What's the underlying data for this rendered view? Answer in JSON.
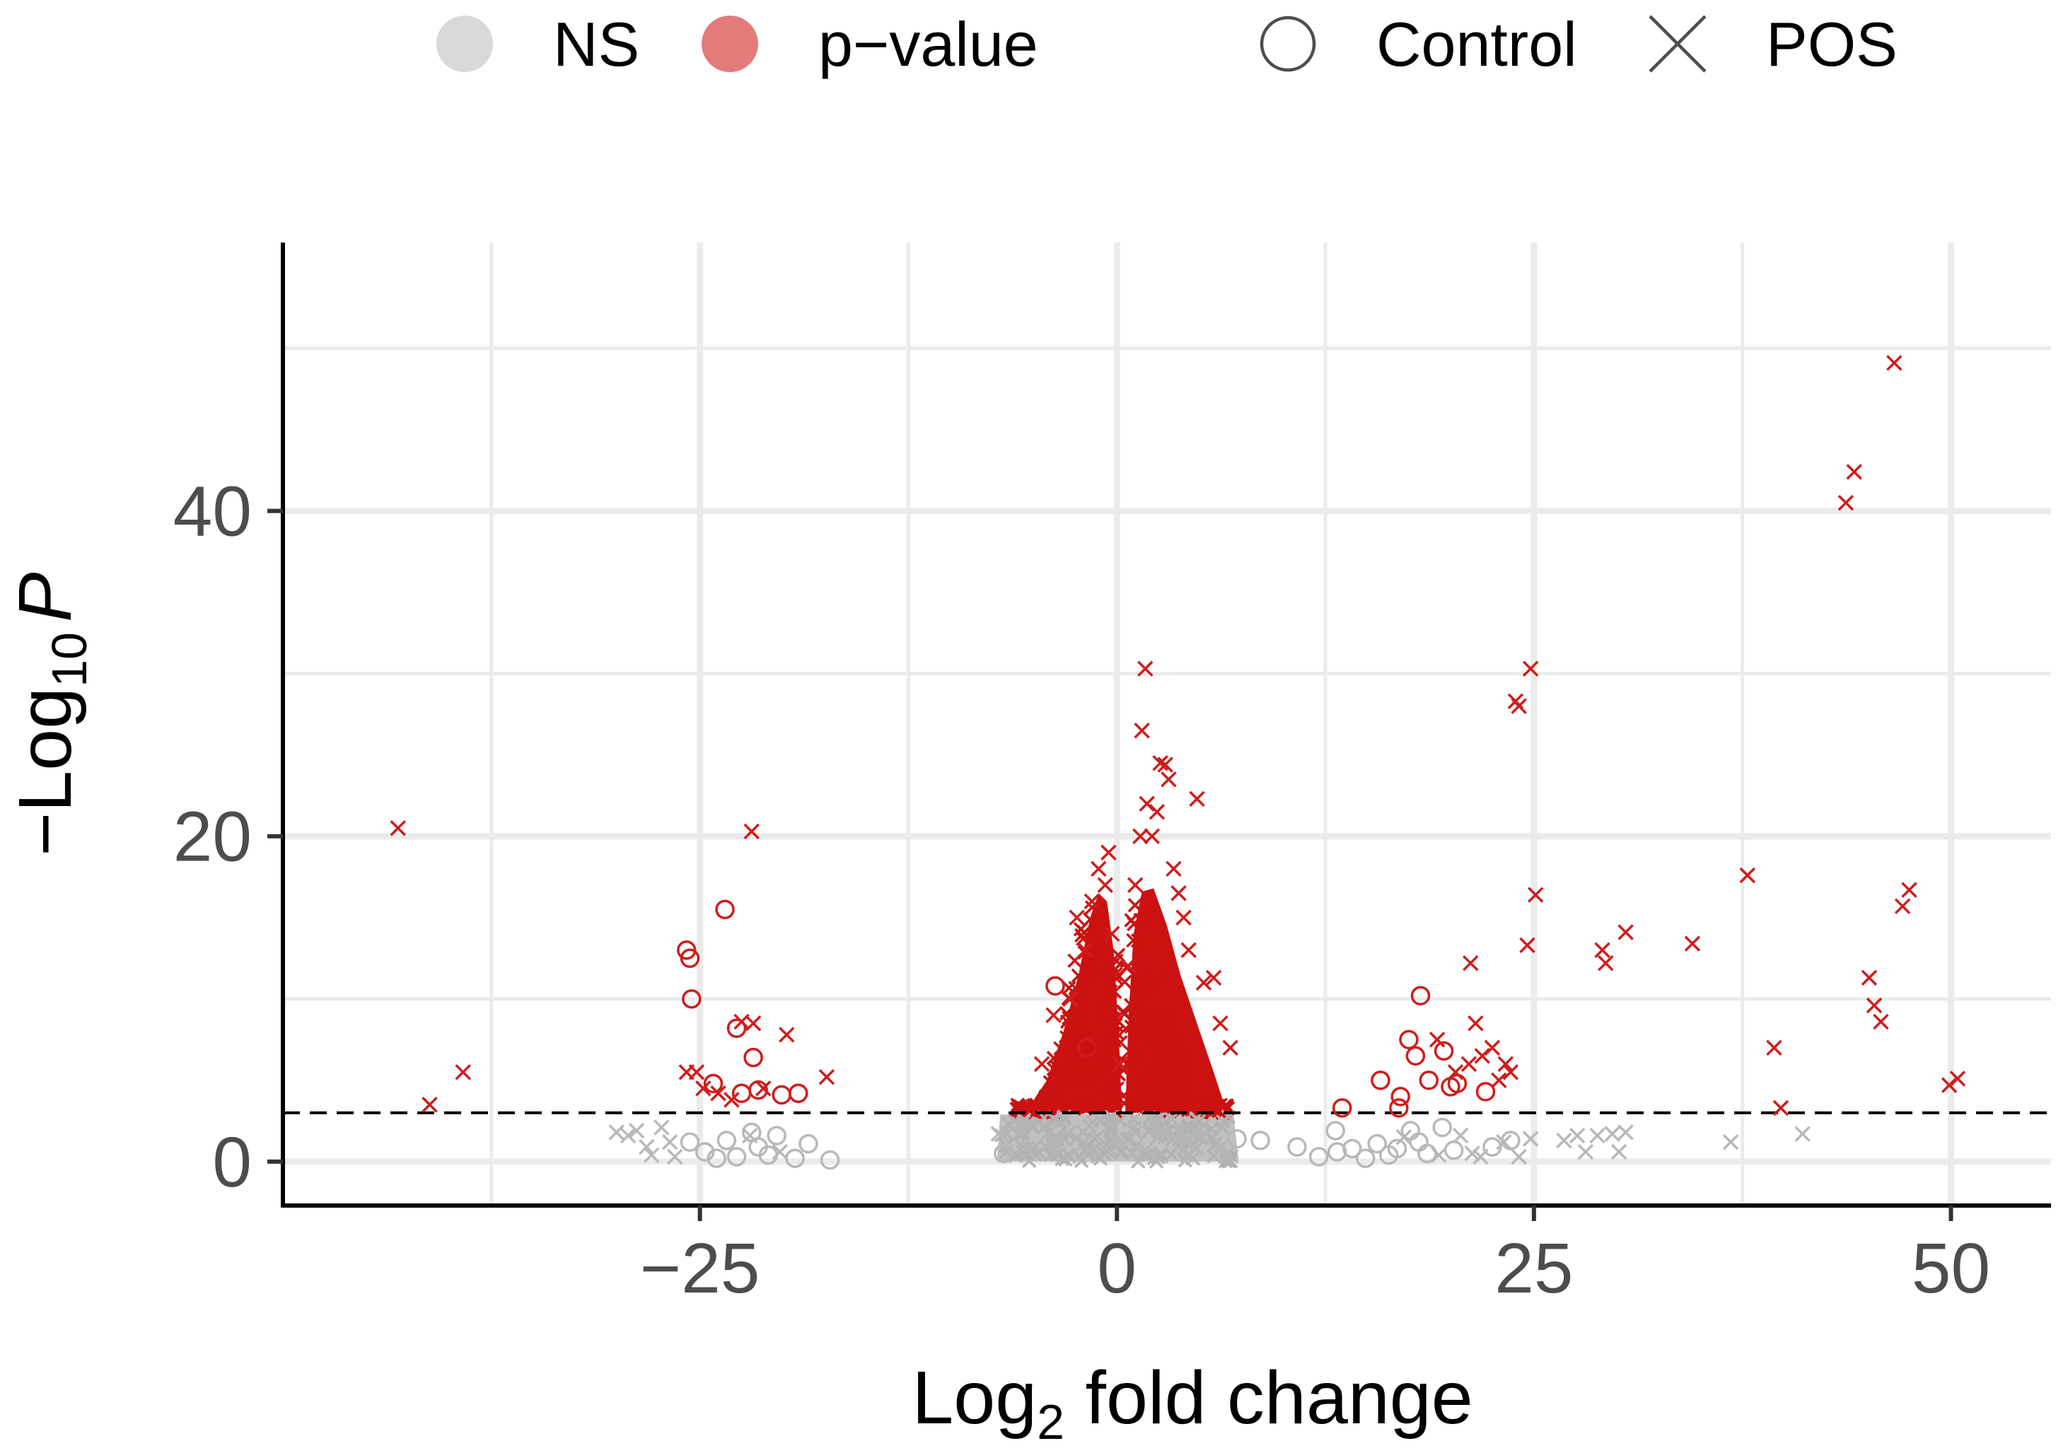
{
  "chart_data": {
    "type": "scatter",
    "subtype": "volcano",
    "xlabel": {
      "main": "Log",
      "subscript": "2",
      "rest": " fold change"
    },
    "ylabel": {
      "prefix": "−Log",
      "subscript": "10",
      "italic": "P"
    },
    "x_ticks": [
      -25,
      0,
      25,
      50
    ],
    "x_tick_labels": [
      "−25",
      "0",
      "25",
      "50"
    ],
    "y_ticks": [
      0,
      20,
      40
    ],
    "y_tick_labels": [
      "0",
      "20",
      "40"
    ],
    "xlim": [
      -50,
      56
    ],
    "ylim": [
      -2.7,
      56.5
    ],
    "grid": true,
    "significance_threshold_y": 3,
    "legend": {
      "placement": "top",
      "color_entries": [
        {
          "label": "NS",
          "color": "#d9d9d9"
        },
        {
          "label": "p−value",
          "color": "#e47b7b"
        }
      ],
      "shape_entries": [
        {
          "label": "Control",
          "shape": "circle"
        },
        {
          "label": "POS",
          "shape": "cross"
        }
      ]
    },
    "colors": {
      "NS": "#c0c0c0",
      "significant": "#cc1111"
    },
    "series": [
      {
        "name": "p−value",
        "shape": "cross",
        "points": [
          [
            -43.1,
            20.5
          ],
          [
            -41.2,
            3.5
          ],
          [
            -39.2,
            5.5
          ],
          [
            -25.8,
            5.5
          ],
          [
            -25.2,
            5.5
          ],
          [
            -24.8,
            4.5
          ],
          [
            -23.9,
            4.2
          ],
          [
            -23.1,
            3.8
          ],
          [
            -22.5,
            8.6
          ],
          [
            -21.9,
            20.3
          ],
          [
            -21.8,
            8.5
          ],
          [
            -21.2,
            4.5
          ],
          [
            -19.8,
            7.8
          ],
          [
            -17.4,
            5.2
          ],
          [
            -4.5,
            6
          ],
          [
            -3.8,
            9
          ],
          [
            -2.8,
            10
          ],
          [
            -2.4,
            15
          ],
          [
            -1.9,
            13
          ],
          [
            -1.5,
            16
          ],
          [
            -1.1,
            18
          ],
          [
            -0.7,
            17
          ],
          [
            -0.5,
            19
          ],
          [
            -0.3,
            14
          ],
          [
            0.2,
            6
          ],
          [
            0.7,
            12
          ],
          [
            1.1,
            17
          ],
          [
            1.4,
            20
          ],
          [
            1.5,
            26.5
          ],
          [
            1.7,
            30.3
          ],
          [
            1.8,
            22
          ],
          [
            2.1,
            20
          ],
          [
            2.4,
            21.5
          ],
          [
            2.6,
            24.5
          ],
          [
            2.9,
            24.4
          ],
          [
            3.1,
            23.5
          ],
          [
            3.4,
            18
          ],
          [
            3.7,
            16.5
          ],
          [
            4,
            15
          ],
          [
            4.3,
            13
          ],
          [
            4.8,
            22.3
          ],
          [
            5.2,
            11
          ],
          [
            5.8,
            11.3
          ],
          [
            6.2,
            8.5
          ],
          [
            6.8,
            7
          ],
          [
            19.2,
            7.5
          ],
          [
            20.3,
            5.5
          ],
          [
            21.1,
            6
          ],
          [
            21.2,
            12.2
          ],
          [
            21.5,
            8.5
          ],
          [
            21.9,
            6.5
          ],
          [
            22.5,
            7
          ],
          [
            22.9,
            5
          ],
          [
            23.3,
            6
          ],
          [
            23.6,
            5.5
          ],
          [
            23.9,
            28.3
          ],
          [
            24.1,
            28
          ],
          [
            24.6,
            13.3
          ],
          [
            24.8,
            30.3
          ],
          [
            25.1,
            16.4
          ],
          [
            29.1,
            13
          ],
          [
            29.3,
            12.2
          ],
          [
            30.5,
            14.1
          ],
          [
            34.5,
            13.4
          ],
          [
            37.8,
            17.6
          ],
          [
            39.4,
            7
          ],
          [
            39.8,
            3.3
          ],
          [
            43.7,
            40.5
          ],
          [
            44.2,
            42.4
          ],
          [
            45.1,
            11.3
          ],
          [
            45.4,
            9.6
          ],
          [
            45.8,
            8.6
          ],
          [
            46.6,
            49.1
          ],
          [
            47.1,
            15.7
          ],
          [
            47.5,
            16.7
          ],
          [
            49.9,
            4.7
          ],
          [
            50.4,
            5.1
          ]
        ]
      },
      {
        "name": "p−value",
        "shape": "circle",
        "points": [
          [
            -25.8,
            13
          ],
          [
            -25.6,
            12.5
          ],
          [
            -25.5,
            10
          ],
          [
            -23.5,
            15.5
          ],
          [
            -22.8,
            8.2
          ],
          [
            -21.8,
            6.4
          ],
          [
            -22.5,
            4.2
          ],
          [
            -24.2,
            4.8
          ],
          [
            -21.5,
            4.4
          ],
          [
            -20.1,
            4.1
          ],
          [
            -19.1,
            4.2
          ],
          [
            -3.7,
            10.8
          ],
          [
            -1.8,
            7
          ],
          [
            13.5,
            3.3
          ],
          [
            15.8,
            5
          ],
          [
            17,
            4
          ],
          [
            17.5,
            7.5
          ],
          [
            17.9,
            6.5
          ],
          [
            18.2,
            10.2
          ],
          [
            18.7,
            5
          ],
          [
            19.6,
            6.8
          ],
          [
            20,
            4.6
          ],
          [
            20.4,
            4.8
          ],
          [
            22.1,
            4.3
          ],
          [
            16.9,
            3.3
          ]
        ]
      },
      {
        "name": "NS",
        "shape": "cross",
        "points": [
          [
            -30,
            1.8
          ],
          [
            -29.3,
            1.6
          ],
          [
            -28.8,
            1.9
          ],
          [
            -28.2,
            0.9
          ],
          [
            -27.9,
            0.4
          ],
          [
            -27.3,
            2.1
          ],
          [
            -26.8,
            1.2
          ],
          [
            -26.5,
            0.3
          ],
          [
            -22,
            1.6
          ],
          [
            -20.2,
            0.6
          ],
          [
            -7.1,
            1.7
          ],
          [
            6.3,
            1
          ],
          [
            17.2,
            1.5
          ],
          [
            19.3,
            0.4
          ],
          [
            20.6,
            1.6
          ],
          [
            21.3,
            0.5
          ],
          [
            21.8,
            0.3
          ],
          [
            23.2,
            1.2
          ],
          [
            24.1,
            0.3
          ],
          [
            24.8,
            1.4
          ],
          [
            26.8,
            1.3
          ],
          [
            27.6,
            1.6
          ],
          [
            28.1,
            0.6
          ],
          [
            28.8,
            1.6
          ],
          [
            29.7,
            1.7
          ],
          [
            30.1,
            0.6
          ],
          [
            30.5,
            1.8
          ],
          [
            36.8,
            1.2
          ],
          [
            41.1,
            1.7
          ]
        ]
      },
      {
        "name": "NS",
        "shape": "circle",
        "points": [
          [
            -25.6,
            1.2
          ],
          [
            -24.7,
            0.6
          ],
          [
            -24,
            0.2
          ],
          [
            -23.4,
            1.3
          ],
          [
            -22.8,
            0.3
          ],
          [
            -21.9,
            1.8
          ],
          [
            -21.5,
            0.9
          ],
          [
            -20.9,
            0.4
          ],
          [
            -20.4,
            1.6
          ],
          [
            -19.3,
            0.2
          ],
          [
            -18.5,
            1.1
          ],
          [
            -17.2,
            0.1
          ],
          [
            -6.8,
            0.5
          ],
          [
            7.2,
            1.4
          ],
          [
            8.6,
            1.3
          ],
          [
            10.8,
            0.9
          ],
          [
            12.1,
            0.3
          ],
          [
            13.2,
            0.6
          ],
          [
            13.1,
            1.9
          ],
          [
            14.1,
            0.8
          ],
          [
            14.9,
            0.2
          ],
          [
            15.6,
            1.1
          ],
          [
            16.3,
            0.4
          ],
          [
            16.8,
            0.8
          ],
          [
            17.6,
            1.9
          ],
          [
            18.1,
            1.2
          ],
          [
            18.6,
            0.5
          ],
          [
            19.5,
            2.1
          ],
          [
            20.2,
            0.7
          ],
          [
            22.5,
            0.9
          ],
          [
            23.6,
            1.3
          ]
        ]
      }
    ]
  }
}
